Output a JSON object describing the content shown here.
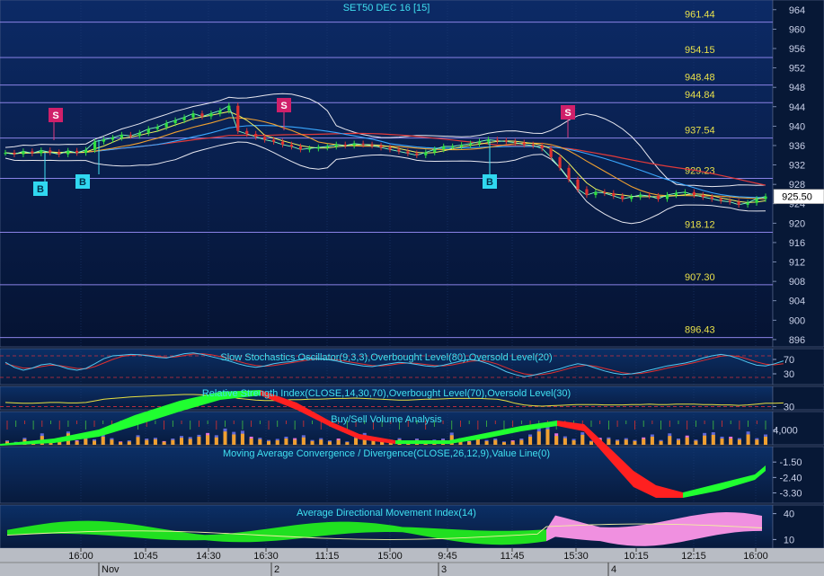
{
  "chart_data": [
    {
      "type": "line",
      "title": "SET50 DEC 16   [15]",
      "y_axis_ticks": [
        964,
        960,
        956,
        952,
        948,
        944,
        940,
        936,
        932,
        928,
        924,
        920,
        916,
        912,
        908,
        904,
        900,
        896
      ],
      "ylim": [
        894.5,
        966
      ],
      "last_price": "925.50",
      "level_lines": [
        {
          "value": 961.44,
          "label": "961.44"
        },
        {
          "value": 954.15,
          "label": "954.15"
        },
        {
          "value": 948.48,
          "label": "948.48"
        },
        {
          "value": 944.84,
          "label": "944.84"
        },
        {
          "value": 937.54,
          "label": "937.54"
        },
        {
          "value": 929.23,
          "label": "929.23"
        },
        {
          "value": 918.12,
          "label": "918.12"
        },
        {
          "value": 907.3,
          "label": "907.30"
        },
        {
          "value": 896.43,
          "label": "896.43"
        }
      ],
      "series": [
        {
          "values": [
            934.5,
            934.2,
            934.8,
            934.4,
            935.0,
            934.6,
            934.2,
            934.9,
            934.5,
            935.1,
            936.8,
            937.2,
            937.6,
            938.2,
            938.0,
            938.6,
            939.4,
            939.8,
            940.6,
            941.2,
            941.8,
            942.6,
            942.0,
            942.6,
            943.2,
            944.2,
            939.0,
            938.4,
            937.8,
            937.2,
            936.8,
            936.2,
            935.8,
            935.2,
            935.4,
            935.6,
            935.8,
            936.2,
            936.0,
            936.4,
            936.2,
            936.0,
            935.6,
            935.2,
            934.8,
            934.4,
            934.0,
            934.6,
            935.2,
            935.8,
            935.8,
            936.1,
            936.4,
            936.8,
            937.2,
            937.0,
            936.8,
            936.6,
            936.2,
            936.0,
            935.4,
            933.6,
            931.4,
            929.0,
            927.0,
            925.8,
            926.4,
            926.2,
            925.6,
            925.0,
            925.4,
            925.8,
            925.6,
            925.0,
            925.8,
            926.2,
            926.4,
            925.8,
            925.4,
            925.0,
            924.6,
            924.4,
            923.8,
            924.2,
            925.0,
            925.5
          ]
        }
      ],
      "signals": [
        {
          "text": "B",
          "kind": "buy",
          "bar": 10
        },
        {
          "text": "B",
          "kind": "buy",
          "bar": 16
        },
        {
          "text": "S",
          "kind": "sell",
          "bar": 12
        },
        {
          "text": "S",
          "kind": "sell",
          "bar": 50
        },
        {
          "text": "B",
          "kind": "buy",
          "bar": 88
        },
        {
          "text": "S",
          "kind": "sell",
          "bar": 103
        }
      ]
    },
    {
      "type": "line",
      "title": "Slow Stochastics Oscillator(9,3,3),Overbought Level(80),Oversold Level(20)",
      "y_axis_ticks": [
        70,
        30
      ],
      "ylim": [
        0,
        100
      ],
      "overbought": 80,
      "oversold": 20,
      "series": [
        {
          "values": [
            62,
            48,
            40,
            46,
            55,
            58,
            52,
            44,
            40,
            45,
            58,
            72,
            80,
            82,
            84,
            83,
            80,
            76,
            74,
            80,
            86,
            88,
            84,
            78,
            72,
            66,
            58,
            52,
            48,
            52,
            58,
            62,
            64,
            70,
            74,
            72,
            70,
            66,
            60,
            56,
            52,
            50,
            54,
            58,
            62,
            60,
            56,
            52,
            50,
            54,
            60,
            66,
            70,
            66,
            58,
            48,
            36,
            28,
            22,
            26,
            32,
            38,
            44,
            52,
            58,
            54,
            46,
            38,
            32,
            28,
            30,
            34,
            40,
            46,
            52,
            56,
            60,
            66,
            74,
            80,
            84,
            80,
            72,
            62,
            54,
            52,
            58,
            66
          ]
        },
        {
          "values": [
            58,
            52,
            46,
            46,
            50,
            54,
            53,
            49,
            45,
            44,
            50,
            60,
            70,
            78,
            82,
            83,
            82,
            79,
            76,
            77,
            81,
            85,
            86,
            83,
            78,
            72,
            65,
            58,
            53,
            51,
            53,
            57,
            61,
            65,
            69,
            71,
            71,
            69,
            65,
            61,
            57,
            53,
            52,
            54,
            58,
            60,
            59,
            56,
            53,
            52,
            55,
            60,
            65,
            67,
            64,
            57,
            47,
            37,
            30,
            27,
            28,
            32,
            38,
            45,
            51,
            54,
            51,
            45,
            39,
            33,
            30,
            31,
            35,
            40,
            46,
            51,
            56,
            61,
            67,
            73,
            79,
            81,
            78,
            71,
            63,
            57,
            55,
            58
          ]
        }
      ]
    },
    {
      "type": "line",
      "title": "Relative Strength Index(CLOSE,14,30,70),Overbought Level(70),Oversold Level(30)",
      "y_axis_ticks": [
        30
      ],
      "ylim": [
        22,
        80
      ],
      "overbought": 70,
      "oversold": 30,
      "series": [
        {
          "values": [
            40,
            39,
            38,
            38,
            39,
            40,
            40,
            39,
            39,
            40,
            44,
            48,
            50,
            52,
            54,
            55,
            56,
            57,
            58,
            59,
            60,
            60,
            59,
            58,
            57,
            56,
            50,
            48,
            46,
            45,
            45,
            46,
            47,
            47,
            48,
            48,
            49,
            50,
            50,
            51,
            50,
            49,
            48,
            47,
            46,
            46,
            47,
            48,
            48,
            49,
            50,
            50,
            50,
            50,
            49,
            48,
            44,
            38,
            34,
            32,
            31,
            32,
            33,
            34,
            35,
            35,
            35,
            34,
            34,
            34,
            35,
            35,
            36,
            35,
            35,
            36,
            36,
            36,
            35,
            35,
            34,
            34,
            33,
            34,
            36,
            38,
            38,
            39
          ]
        }
      ]
    },
    {
      "type": "bar",
      "title": "Buy/Sell Volume Analysis",
      "y_axis_ticks": [
        4000
      ],
      "y_tick_labels": [
        "4,000"
      ],
      "ylim": [
        0,
        9000
      ],
      "buy_volume": [
        900,
        600,
        1500,
        800,
        2400,
        700,
        1200,
        3100,
        900,
        1600,
        1100,
        2200,
        1400,
        700,
        900,
        2100,
        1300,
        1500,
        800,
        1300,
        1900,
        1600,
        2200,
        2600,
        2000,
        3600,
        2800,
        3000,
        1700,
        1500,
        1000,
        1200,
        1700,
        1400,
        2000,
        1000,
        1400,
        900,
        1300,
        700,
        1800,
        2600,
        1500,
        900,
        1100,
        1400,
        800,
        1300,
        700,
        1100,
        1300,
        2600,
        1400,
        800,
        1600,
        1000,
        1300,
        700,
        900,
        1300,
        2200,
        3600,
        4200,
        2400,
        1800,
        1200,
        2700,
        900,
        1500,
        1600,
        1100,
        1400,
        1000,
        1600,
        2200,
        1000,
        2400,
        1300,
        2000,
        1100,
        2500,
        2700,
        1700,
        1700,
        1400,
        2800,
        1400,
        2200
      ],
      "sell_volume": [
        1200,
        800,
        1900,
        1100,
        3100,
        900,
        1500,
        3600,
        1200,
        2000,
        1500,
        2700,
        1800,
        900,
        1200,
        2600,
        1700,
        1900,
        1000,
        1700,
        2400,
        2100,
        2700,
        3200,
        2600,
        4400,
        3500,
        3800,
        2200,
        1900,
        1300,
        1600,
        2200,
        1800,
        2600,
        1300,
        1800,
        1200,
        1700,
        900,
        2300,
        3200,
        1900,
        1200,
        1400,
        1800,
        1000,
        1700,
        900,
        1400,
        1700,
        3300,
        1800,
        1000,
        2100,
        1300,
        1700,
        900,
        1200,
        1700,
        2800,
        4600,
        5400,
        3100,
        2300,
        1600,
        3400,
        1100,
        1900,
        2000,
        1400,
        1800,
        1300,
        2000,
        2800,
        1300,
        3100,
        1700,
        2500,
        1400,
        3200,
        3400,
        2200,
        2200,
        1800,
        3600,
        1800,
        2800
      ]
    },
    {
      "type": "area",
      "title": "Moving Average Convergence / Divergence(CLOSE,26,12,9),Value Line(0)",
      "y_axis_ticks": [
        -1.5,
        -2.4,
        -3.3
      ],
      "y_tick_labels": [
        "-1.50",
        "-2.40",
        "-3.30"
      ],
      "ylim": [
        -3.9,
        -0.6
      ]
    },
    {
      "type": "area",
      "title": "Average Directional Movement Index(14)",
      "y_axis_ticks": [
        40,
        10
      ],
      "ylim": [
        0,
        50
      ]
    }
  ],
  "x_axis": {
    "time_labels": [
      "16:00",
      "10:45",
      "14:30",
      "16:30",
      "11:15",
      "15:00",
      "9:45",
      "11:45",
      "15:30",
      "10:15",
      "12:15",
      "16:00"
    ],
    "date_labels": [
      "Nov",
      "2",
      "3",
      "4"
    ]
  }
}
